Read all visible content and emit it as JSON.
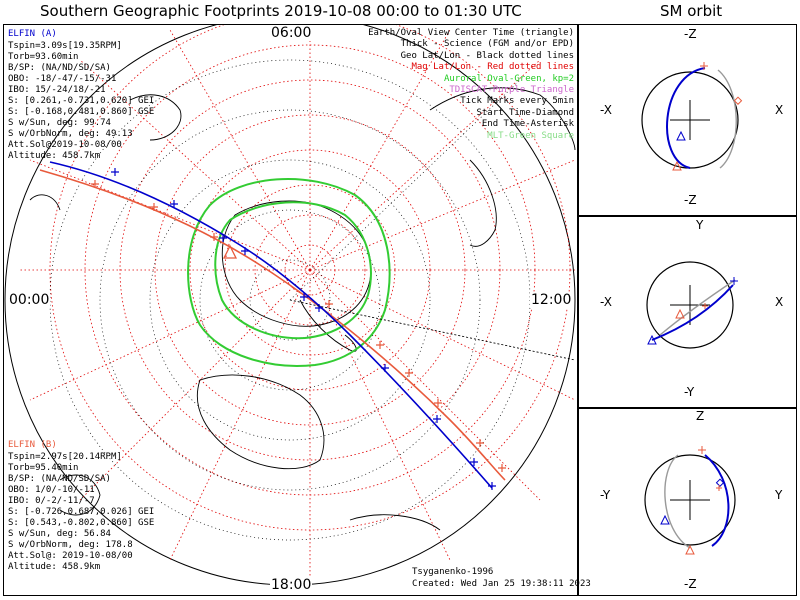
{
  "main_title": "Southern Geographic Footprints 2019-10-08 00:00 to 01:30 UTC",
  "sm_title": "SM orbit",
  "mlt": {
    "top": "06:00",
    "left": "00:00",
    "right": "12:00",
    "bottom": "18:00"
  },
  "elfin_a": {
    "name": "ELFIN (A)",
    "lines": [
      "Tspin=3.09s[19.35RPM]",
      "Torb=93.60min",
      "B/SP: (NA/ND/SD/SA)",
      "OBO: -18/-47/-15/-31",
      "IBO: 15/-24/18/-21",
      "S: [0.261,-0.731,0.620] GEI",
      "S: [-0.168,0.481,0.860] GSE",
      "S w/Sun, deg: 99.74",
      "S w/OrbNorm, deg: 49.13",
      "Att.Sol@2019-10-08/00",
      "Altitude: 458.7km"
    ]
  },
  "elfin_b": {
    "name": "ELFIN (B)",
    "lines": [
      "Tspin=2.97s[20.14RPM]",
      "Torb=95.40min",
      "B/SP: (NA/ND/SD/SA)",
      "OBO: 1/0/-10/-11",
      "IBO: 0/-2/-11/-7",
      "S: [-0.726,0.687,0.026] GEI",
      "S: [0.543,-0.802,0.860] GSE",
      "S w/Sun, deg: 56.84",
      "S w/OrbNorm, deg: 178.8",
      "Att.Sol@: 2019-10-08/00",
      "Altitude: 458.9km"
    ]
  },
  "legend": [
    {
      "text": "Earth/Oval View Center Time (triangle)",
      "color": "#000000"
    },
    {
      "text": "Thick - Science (FGM and/or EPD)",
      "color": "#000000"
    },
    {
      "text": "Geo Lat/Lon - Black dotted lines",
      "color": "#000000"
    },
    {
      "text": "Mag Lat/Lon - Red dotted lines",
      "color": "#e00000"
    },
    {
      "text": "Auroral Oval-Green, kp=2",
      "color": "#22cc22"
    },
    {
      "text": "TDISCAT-Purple Triangle",
      "color": "#cc66cc"
    },
    {
      "text": "Tick Marks every 5min",
      "color": "#000000"
    },
    {
      "text": "Start Time-Diamond",
      "color": "#000000"
    },
    {
      "text": "End Time-Asterisk",
      "color": "#000000"
    },
    {
      "text": "MLT-Green Square",
      "color": "#88dd88"
    }
  ],
  "footer_author": "Tsyganenko-1996",
  "footer_created": "Created: Wed Jan 25 19:38:11 2023",
  "sm_panels": [
    {
      "top": "-Z",
      "bottom": "-Z",
      "left": "-X",
      "right": "X"
    },
    {
      "top": "Y",
      "bottom": "-Y",
      "left": "-X",
      "right": "X"
    },
    {
      "top": "Z",
      "bottom": "-Z",
      "left": "-Y",
      "right": "Y"
    }
  ],
  "colors": {
    "elfin_a": "#0000cc",
    "elfin_b": "#e85a3c",
    "oval": "#33cc33",
    "mag_grid": "#e00000"
  }
}
